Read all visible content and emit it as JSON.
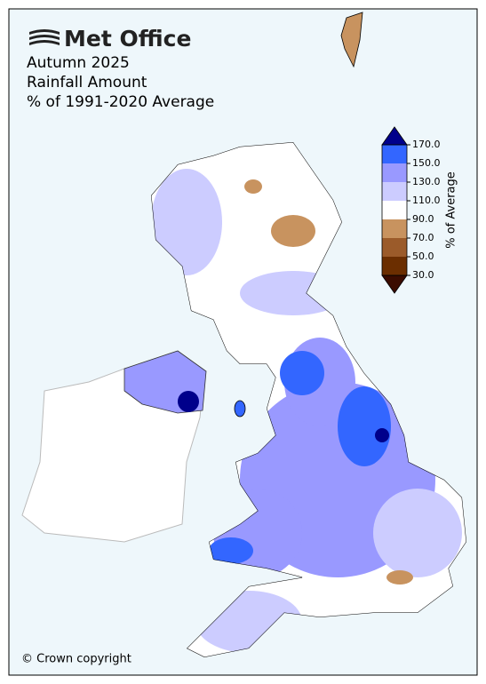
{
  "header": {
    "logo": "Met Office",
    "title_lines": [
      "Autumn 2025",
      "Rainfall Amount",
      "% of 1991-2020 Average"
    ]
  },
  "colorbar": {
    "label": "% of Average",
    "range": [
      30,
      170
    ],
    "ticks": [
      {
        "value": 170,
        "label": "170.0"
      },
      {
        "value": 150,
        "label": "150.0"
      },
      {
        "value": 130,
        "label": "130.0"
      },
      {
        "value": 110,
        "label": "110.0"
      },
      {
        "value": 90,
        "label": "90.0"
      },
      {
        "value": 70,
        "label": "70.0"
      },
      {
        "value": 50,
        "label": "50.0"
      },
      {
        "value": 30,
        "label": "30.0"
      }
    ],
    "bins": [
      {
        "from": 150,
        "to": 170,
        "color": "#3366ff"
      },
      {
        "from": 130,
        "to": 150,
        "color": "#9999ff"
      },
      {
        "from": 110,
        "to": 130,
        "color": "#ccccff"
      },
      {
        "from": 90,
        "to": 110,
        "color": "#ffffff"
      },
      {
        "from": 70,
        "to": 90,
        "color": "#c8935f"
      },
      {
        "from": 50,
        "to": 70,
        "color": "#9b5b2a"
      },
      {
        "from": 30,
        "to": 50,
        "color": "#6b2e00"
      }
    ],
    "over_color": "#00008b",
    "under_color": "#3b0c00"
  },
  "footer": {
    "copyright": "© Crown copyright"
  }
}
